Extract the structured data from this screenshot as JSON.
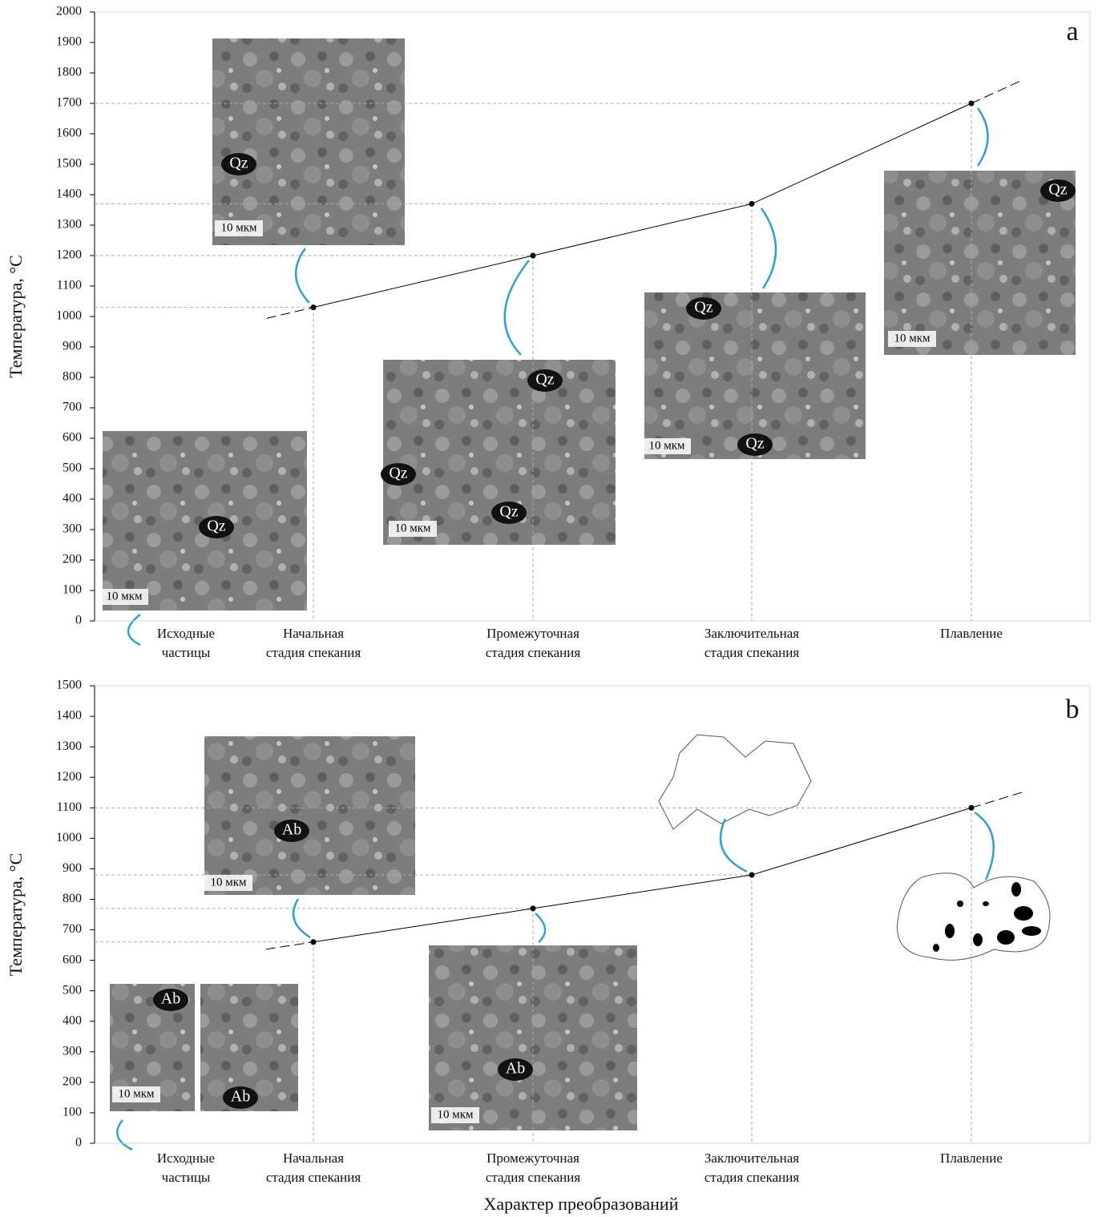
{
  "chart_data": [
    {
      "type": "line",
      "panel": "a",
      "y_label": "Температура, °C",
      "categories": [
        [
          "Исходные",
          "частицы"
        ],
        [
          "Начальная",
          "стадия  спекания"
        ],
        [
          "Промежуточная",
          "стадия  спекания"
        ],
        [
          "Заключительная",
          "стадия  спекания"
        ],
        [
          "Плавление"
        ]
      ],
      "values": [
        null,
        1030,
        1200,
        1370,
        1700
      ],
      "color": "#000000",
      "ylim": [
        0,
        2000
      ],
      "yticks": [
        0,
        100,
        200,
        300,
        400,
        500,
        600,
        700,
        800,
        900,
        1000,
        1100,
        1200,
        1300,
        1400,
        1500,
        1600,
        1700,
        1800,
        1900,
        2000
      ],
      "annotations": [
        "Qz",
        "10 мкм",
        "Qz",
        "10 мкм",
        "Qz",
        "Qz",
        "Qz",
        "10 мкм",
        "Qz",
        "Qz",
        "10 мкм",
        "Qz",
        "10 мкм"
      ]
    },
    {
      "type": "line",
      "panel": "b",
      "y_label": "Температура, °C",
      "x_label": "Характер преобразований",
      "categories": [
        [
          "Исходные",
          "частицы"
        ],
        [
          "Начальная",
          "стадия  спекания"
        ],
        [
          "Промежуточная",
          "стадия  спекания"
        ],
        [
          "Заключительная",
          "стадия  спекания"
        ],
        [
          "Плавление"
        ]
      ],
      "values": [
        null,
        660,
        770,
        880,
        1100
      ],
      "color": "#000000",
      "ylim": [
        0,
        1500
      ],
      "yticks": [
        0,
        100,
        200,
        300,
        400,
        500,
        600,
        700,
        800,
        900,
        1000,
        1100,
        1200,
        1300,
        1400,
        1500
      ],
      "annotations": [
        "Ab",
        "10 мкм",
        "Ab",
        "Ab",
        "10 мкм",
        "Ab",
        "10 мкм"
      ]
    }
  ]
}
